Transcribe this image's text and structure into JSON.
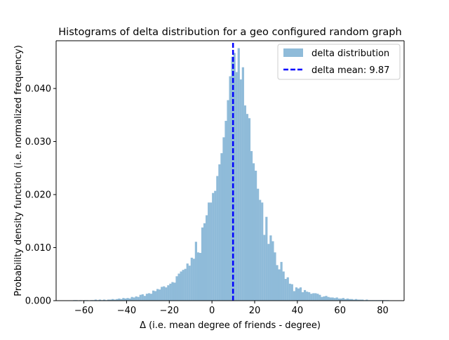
{
  "chart_data": {
    "type": "bar",
    "title": "Histograms of delta distribution for a geo configured random graph",
    "xlabel": "Δ (i.e. mean degree of friends - degree)",
    "ylabel": "Probability density function (i.e. normalized frequency)",
    "xlim": [
      -73,
      90
    ],
    "ylim": [
      0,
      0.049
    ],
    "bin_width": 1,
    "xticks": [
      -60,
      -40,
      -20,
      0,
      20,
      40,
      60,
      80
    ],
    "xtick_labels": [
      "−60",
      "−40",
      "−20",
      "0",
      "20",
      "40",
      "60",
      "80"
    ],
    "yticks": [
      0.0,
      0.01,
      0.02,
      0.03,
      0.04
    ],
    "ytick_labels": [
      "0.000",
      "0.010",
      "0.020",
      "0.030",
      "0.040"
    ],
    "grid": false,
    "legend_position": "upper right",
    "series": [
      {
        "name": "delta distribution",
        "kind": "histogram",
        "color": "#8fbbd9",
        "bin_starts": [
          -65,
          -64,
          -63,
          -62,
          -61,
          -60,
          -59,
          -58,
          -57,
          -56,
          -55,
          -54,
          -53,
          -52,
          -51,
          -50,
          -49,
          -48,
          -47,
          -46,
          -45,
          -44,
          -43,
          -42,
          -41,
          -40,
          -39,
          -38,
          -37,
          -36,
          -35,
          -34,
          -33,
          -32,
          -31,
          -30,
          -29,
          -28,
          -27,
          -26,
          -25,
          -24,
          -23,
          -22,
          -21,
          -20,
          -19,
          -18,
          -17,
          -16,
          -15,
          -14,
          -13,
          -12,
          -11,
          -10,
          -9,
          -8,
          -7,
          -6,
          -5,
          -4,
          -3,
          -2,
          -1,
          0,
          1,
          2,
          3,
          4,
          5,
          6,
          7,
          8,
          9,
          10,
          11,
          12,
          13,
          14,
          15,
          16,
          17,
          18,
          19,
          20,
          21,
          22,
          23,
          24,
          25,
          26,
          27,
          28,
          29,
          30,
          31,
          32,
          33,
          34,
          35,
          36,
          37,
          38,
          39,
          40,
          41,
          42,
          43,
          44,
          45,
          46,
          47,
          48,
          49,
          50,
          51,
          52,
          53,
          54,
          55,
          56,
          57,
          58,
          59,
          60,
          61,
          62,
          63,
          64,
          65,
          66,
          67,
          68,
          69,
          70,
          71,
          72,
          73,
          74,
          75,
          76,
          77,
          78,
          79,
          80,
          81,
          82
        ],
        "values": [
          0.0001,
          0.0001,
          0.0,
          0.0001,
          0.0,
          0.0001,
          0.0001,
          0.0,
          0.0001,
          0.0001,
          0.0002,
          0.0001,
          0.0002,
          0.0001,
          0.0002,
          0.0001,
          0.0002,
          0.0002,
          0.0003,
          0.0002,
          0.0003,
          0.0004,
          0.0003,
          0.0005,
          0.0004,
          0.0005,
          0.0004,
          0.0007,
          0.0006,
          0.0008,
          0.0007,
          0.0011,
          0.0012,
          0.0009,
          0.0013,
          0.0014,
          0.0013,
          0.0019,
          0.0018,
          0.0022,
          0.0021,
          0.0026,
          0.0027,
          0.0025,
          0.0029,
          0.0032,
          0.0035,
          0.0034,
          0.0046,
          0.0051,
          0.0055,
          0.0058,
          0.006,
          0.007,
          0.0066,
          0.0081,
          0.0079,
          0.0111,
          0.0091,
          0.009,
          0.0138,
          0.0146,
          0.0161,
          0.0185,
          0.0185,
          0.0203,
          0.0207,
          0.0235,
          0.0257,
          0.0278,
          0.0308,
          0.0339,
          0.0378,
          0.0423,
          0.046,
          0.0467,
          0.0431,
          0.0476,
          0.0417,
          0.044,
          0.0368,
          0.0352,
          0.0344,
          0.0282,
          0.0259,
          0.0245,
          0.0211,
          0.019,
          0.0185,
          0.0124,
          0.0158,
          0.0107,
          0.0123,
          0.0112,
          0.0091,
          0.0067,
          0.0059,
          0.0073,
          0.0055,
          0.0041,
          0.0044,
          0.0032,
          0.0031,
          0.0018,
          0.0025,
          0.0023,
          0.0025,
          0.0016,
          0.002,
          0.0017,
          0.0016,
          0.0013,
          0.0014,
          0.0014,
          0.0013,
          0.0011,
          0.0007,
          0.0008,
          0.0009,
          0.0007,
          0.0006,
          0.0006,
          0.0005,
          0.0006,
          0.0004,
          0.0004,
          0.0005,
          0.0003,
          0.0004,
          0.0003,
          0.0003,
          0.0002,
          0.0003,
          0.0002,
          0.0002,
          0.0002,
          0.0001,
          0.0002,
          0.0001,
          0.0001,
          0.0001,
          0.0001,
          0.0001,
          0.0001,
          0.0001,
          0.0001,
          0.0001,
          0.0001
        ]
      },
      {
        "name": "delta mean: 9.87",
        "kind": "vertical-line",
        "x": 9.87,
        "color": "#0000ff",
        "style": "dashed"
      }
    ]
  }
}
